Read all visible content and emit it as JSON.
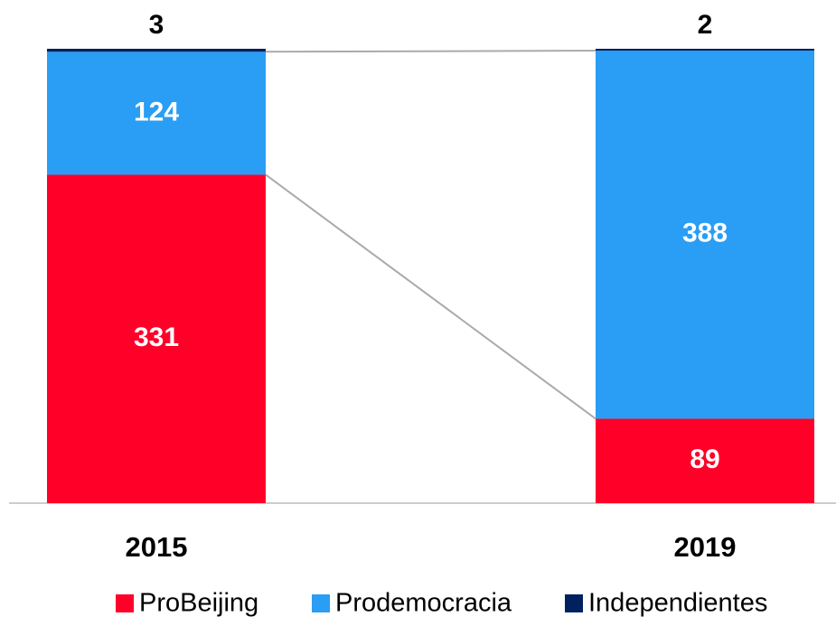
{
  "chart_data": {
    "type": "bar",
    "stack": "percent",
    "categories": [
      "2015",
      "2019"
    ],
    "series": [
      {
        "name": "ProBeijing",
        "color": "#ff0029",
        "values": [
          331,
          89
        ]
      },
      {
        "name": "Prodemocracia",
        "color": "#2a9df4",
        "values": [
          124,
          388
        ]
      },
      {
        "name": "Independientes",
        "color": "#002060",
        "values": [
          3,
          2
        ]
      }
    ],
    "legend": "bottom"
  }
}
